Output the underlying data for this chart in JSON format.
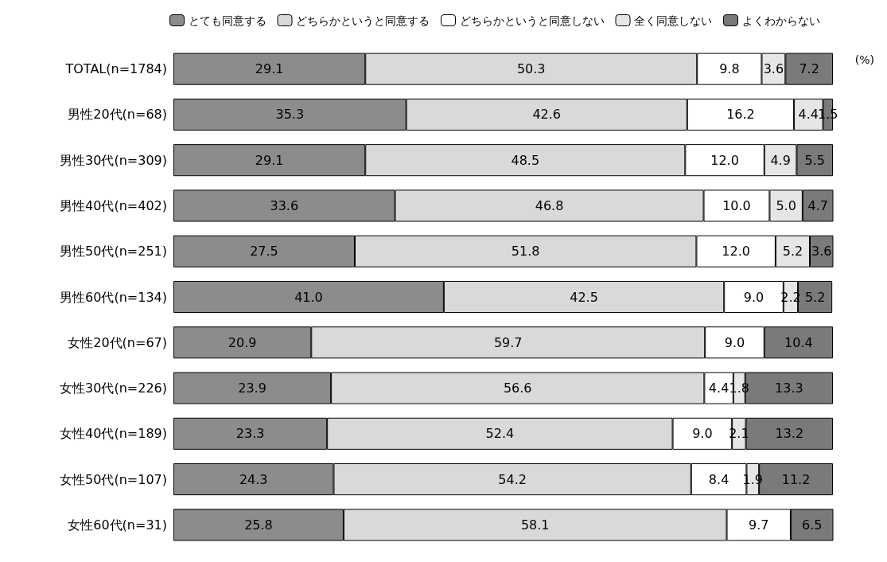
{
  "chart_data": {
    "type": "bar",
    "orientation": "horizontal",
    "stacked": true,
    "xlim": [
      0,
      100
    ],
    "tick_labels": "y",
    "legend": "top",
    "annotations": [
      "(%)"
    ],
    "categories": [
      "TOTAL(n=1784)",
      "男性20代(n=68)",
      "男性30代(n=309)",
      "男性40代(n=402)",
      "男性50代(n=251)",
      "男性60代(n=134)",
      "女性20代(n=67)",
      "女性30代(n=226)",
      "女性40代(n=189)",
      "女性50代(n=107)",
      "女性60代(n=31)"
    ],
    "series": [
      {
        "name": "とても同意する",
        "color": "#8c8c8c",
        "values": [
          29.1,
          35.3,
          29.1,
          33.6,
          27.5,
          41.0,
          20.9,
          23.9,
          23.3,
          24.3,
          25.8
        ],
        "value_labels": [
          "29.1",
          "35.3",
          "29.1",
          "33.6",
          "27.5",
          "41.0",
          "20.9",
          "23.9",
          "23.3",
          "24.3",
          "25.8"
        ]
      },
      {
        "name": "どちらかというと同意する",
        "color": "#d9d9d9",
        "values": [
          50.3,
          42.6,
          48.5,
          46.8,
          51.8,
          42.5,
          59.7,
          56.6,
          52.4,
          54.2,
          58.1
        ],
        "value_labels": [
          "50.3",
          "42.6",
          "48.5",
          "46.8",
          "51.8",
          "42.5",
          "59.7",
          "56.6",
          "52.4",
          "54.2",
          "58.1"
        ]
      },
      {
        "name": "どちらかというと同意しない",
        "color": "#ffffff",
        "values": [
          9.8,
          16.2,
          12.0,
          10.0,
          12.0,
          9.0,
          9.0,
          4.4,
          9.0,
          8.4,
          9.7
        ],
        "value_labels": [
          "9.8",
          "16.2",
          "12.0",
          "10.0",
          "12.0",
          "9.0",
          "9.0",
          "4.4",
          "9.0",
          "8.4",
          "9.7"
        ]
      },
      {
        "name": "全く同意しない",
        "color": "#e6e6e6",
        "values": [
          3.6,
          4.4,
          4.9,
          5.0,
          5.2,
          2.2,
          null,
          1.8,
          2.1,
          1.9,
          null
        ],
        "value_labels": [
          "3.6",
          "4.4",
          "4.9",
          "5.0",
          "5.2",
          "2.2",
          null,
          "1.8",
          "2.1",
          "1.9",
          null
        ]
      },
      {
        "name": "よくわからない",
        "color": "#7a7a7a",
        "values": [
          7.2,
          1.5,
          5.5,
          4.7,
          3.6,
          5.2,
          10.4,
          13.3,
          13.2,
          11.2,
          6.5
        ],
        "value_labels": [
          "7.2",
          "1.5",
          "5.5",
          "4.7",
          "3.6",
          "5.2",
          "10.4",
          "13.3",
          "13.2",
          "11.2",
          "6.5"
        ]
      }
    ]
  }
}
